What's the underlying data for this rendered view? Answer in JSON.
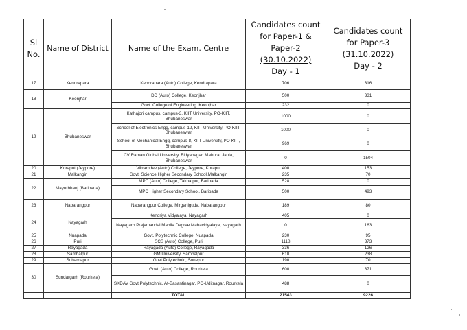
{
  "header": {
    "sl_no": "Sl No.",
    "district": "Name of District",
    "centre": "Name of the Exam. Centre",
    "day1_line1": "Candidates count for Paper-1 & Paper-2",
    "day1_date": "(30.10.2022)",
    "day1_label": "Day - 1",
    "day2_line1": "Candidates count for Paper-3",
    "day2_date": "(31.10.2022)",
    "day2_label": "Day - 2"
  },
  "rows": [
    {
      "sl": "17",
      "district": "Kendrapara",
      "centres": [
        {
          "name": "Kendrapara (Auto) College, Kendrapara",
          "day1": "706",
          "day2": "316"
        }
      ]
    },
    {
      "sl": "18",
      "district": "Keonjhar",
      "centres": [
        {
          "name": "DD (Auto) College, Keonjhar",
          "day1": "500",
          "day2": "331"
        },
        {
          "name": "Govt. College of Engineering ,Keonjhar",
          "day1": "232",
          "day2": "0"
        }
      ]
    },
    {
      "sl": "19",
      "district": "Bhubaneswar",
      "centres": [
        {
          "name": "Kathajori campus, campus-3, KIIT University, PO-KIIT, Bhubaneswar",
          "day1": "1000",
          "day2": "0"
        },
        {
          "name": "School of Electronics Engg, campus-12, KIIT University, PO-KIIT, Bhubaneswar",
          "day1": "1000",
          "day2": "0"
        },
        {
          "name": "School of Mechanical Engg, campus-8, KIIT University, PO-KIIT, Bhubaneswar",
          "day1": "969",
          "day2": "0"
        },
        {
          "name": "CV Raman Global University, Bidyanagar, Mahura, Janla, Bhubaneswar",
          "day1": "0",
          "day2": "1504"
        }
      ]
    },
    {
      "sl": "20",
      "district": "Koraput (Jeypore)",
      "centres": [
        {
          "name": "Vikramdev (Auto) College, Jeypore, Koraput",
          "day1": "400",
          "day2": "153"
        }
      ]
    },
    {
      "sl": "21",
      "district": "Malkangiri",
      "centres": [
        {
          "name": "Govt. Science Higher Secondary School,Malkangiri",
          "day1": "235",
          "day2": "70"
        }
      ]
    },
    {
      "sl": "22",
      "district": "Mayurbhanj (Baripada)",
      "centres": [
        {
          "name": "MPC (Auto) College, Takhatpur, Baripada",
          "day1": "528",
          "day2": "0"
        },
        {
          "name": "MPC Higher Secondary School, Baripada",
          "day1": "500",
          "day2": "493"
        }
      ]
    },
    {
      "sl": "23",
      "district": "Nabarangpur",
      "centres": [
        {
          "name": "Nabarangpur College, Mirganiguda, Nabarangpur",
          "day1": "189",
          "day2": "80"
        }
      ]
    },
    {
      "sl": "24",
      "district": "Nayagarh",
      "centres": [
        {
          "name": "Kendriya Vidyalaya, Nayagarh",
          "day1": "405",
          "day2": "0"
        },
        {
          "name": "Nayagarh Prajamandal Mahila Degree Mahavidyalaya, Nayagarh",
          "day1": "0",
          "day2": "163"
        }
      ]
    },
    {
      "sl": "25",
      "district": "Nuapada",
      "centres": [
        {
          "name": "Govt. Polytechnic College, Nuapada",
          "day1": "230",
          "day2": "95"
        }
      ]
    },
    {
      "sl": "26",
      "district": "Puri",
      "centres": [
        {
          "name": "SCS (Auto) College, Puri",
          "day1": "1118",
          "day2": "373"
        }
      ]
    },
    {
      "sl": "27",
      "district": "Rayagada",
      "centres": [
        {
          "name": "Rayagada (Auto) College, Rayagada",
          "day1": "336",
          "day2": "126"
        }
      ]
    },
    {
      "sl": "28",
      "district": "Sambalpur",
      "centres": [
        {
          "name": "GM University, Sambalpur",
          "day1": "610",
          "day2": "238"
        }
      ]
    },
    {
      "sl": "29",
      "district": "Subarnapur",
      "centres": [
        {
          "name": "Govt.Polytechnic, Sonepur",
          "day1": "190",
          "day2": "70"
        }
      ]
    },
    {
      "sl": "30",
      "district": "Sundargarh (Rourkela)",
      "centres": [
        {
          "name": "Govt. (Auto) College, Rourkela",
          "day1": "600",
          "day2": "371"
        },
        {
          "name": "SKDAV Govt.Polytechnic, At-Basantinagar, PO-Uditnagar, Rourkela",
          "day1": "488",
          "day2": "0"
        }
      ]
    }
  ],
  "total": {
    "label": "TOTAL",
    "day1": "21543",
    "day2": "9226"
  }
}
